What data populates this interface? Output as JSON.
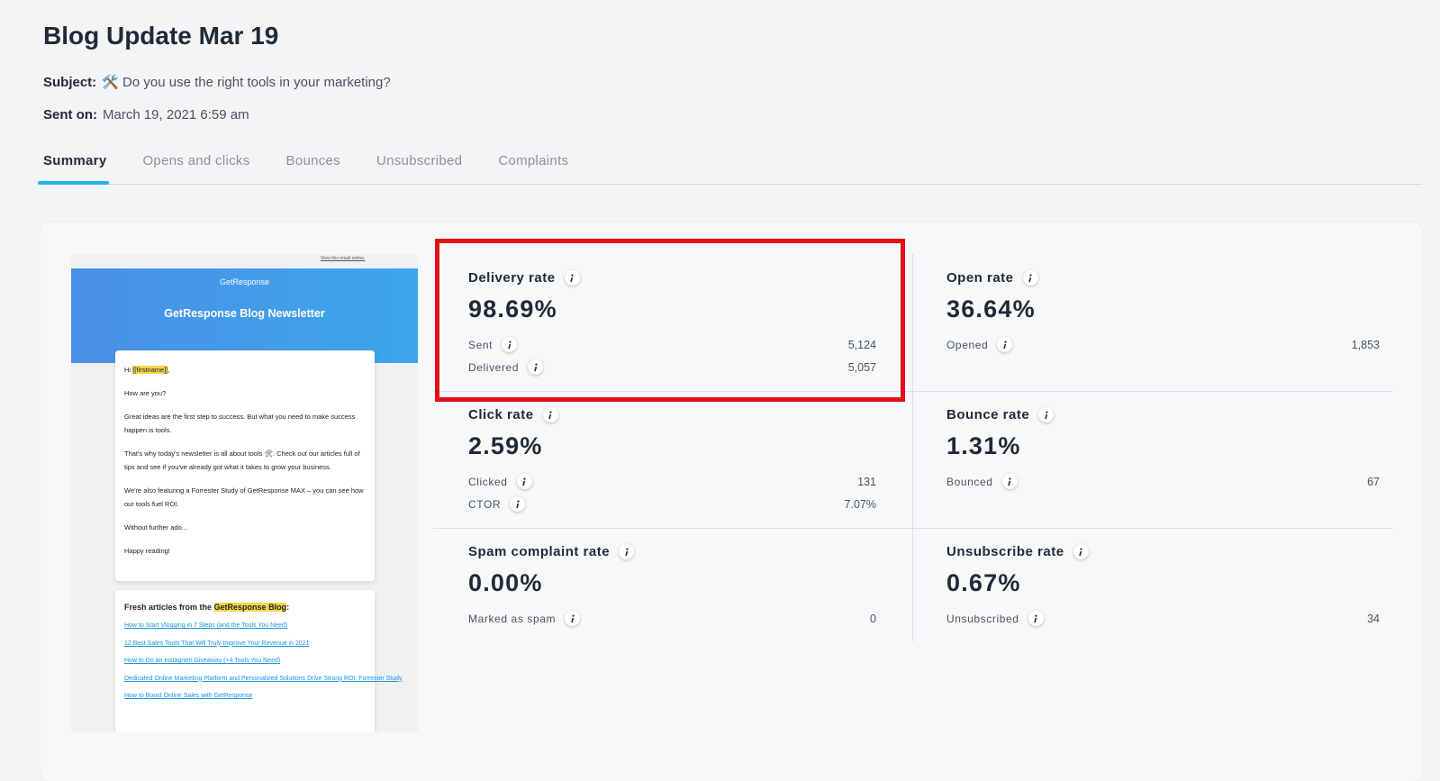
{
  "header": {
    "title": "Blog Update Mar 19",
    "subject_label": "Subject:",
    "subject": "🛠️ Do you use the right tools in your marketing?",
    "sent_label": "Sent on:",
    "sent": "March 19, 2021 6:59 am"
  },
  "tabs": [
    "Summary",
    "Opens and clicks",
    "Bounces",
    "Unsubscribed",
    "Complaints"
  ],
  "preview": {
    "view_online": "View this email online.",
    "brand": "GetResponse",
    "newsletter": "GetResponse Blog Newsletter",
    "greeting": [
      "Hi",
      "[[firstname]]",
      ","
    ],
    "paragraphs": [
      "How are you?",
      "Great ideas are the first step to success. But what you need to make success happen is tools.",
      "That's why today's newsletter is all about tools 🛠. Check out our articles full of tips and see if you've already got what it takes to grow your business.",
      "We're also featuring a Forrester Study of GetResponse MAX – you can see how our tools fuel ROI.",
      "Without further ado...",
      "Happy reading!"
    ],
    "articles_heading": [
      "Fresh articles from the",
      "GetResponse Blog",
      ":"
    ],
    "links": [
      "How to Start Vlogging in 7 Steps (and the Tools You Need)",
      "12 Best Sales Tools That Will Truly Improve Your Revenue in 2021",
      "How to Do an Instagram Giveaway (+4 Tools You Need)",
      "Dedicated Online Marketing Platform and Personalized Solutions Drive Strong ROI: Forrester Study",
      "How to Boost Online Sales with GetResponse"
    ]
  },
  "metrics": [
    {
      "label": "Delivery rate",
      "value": "98.69%",
      "rows": [
        {
          "label": "Sent",
          "value": "5,124"
        },
        {
          "label": "Delivered",
          "value": "5,057"
        }
      ]
    },
    {
      "label": "Open rate",
      "value": "36.64%",
      "rows": [
        {
          "label": "Opened",
          "value": "1,853"
        }
      ]
    },
    {
      "label": "Click rate",
      "value": "2.59%",
      "rows": [
        {
          "label": "Clicked",
          "value": "131"
        },
        {
          "label": "CTOR",
          "value": "7.07%"
        }
      ]
    },
    {
      "label": "Bounce rate",
      "value": "1.31%",
      "rows": [
        {
          "label": "Bounced",
          "value": "67"
        }
      ]
    },
    {
      "label": "Spam complaint rate",
      "value": "0.00%",
      "rows": [
        {
          "label": "Marked as spam",
          "value": "0"
        }
      ]
    },
    {
      "label": "Unsubscribe rate",
      "value": "0.67%",
      "rows": [
        {
          "label": "Unsubscribed",
          "value": "34"
        }
      ]
    }
  ]
}
